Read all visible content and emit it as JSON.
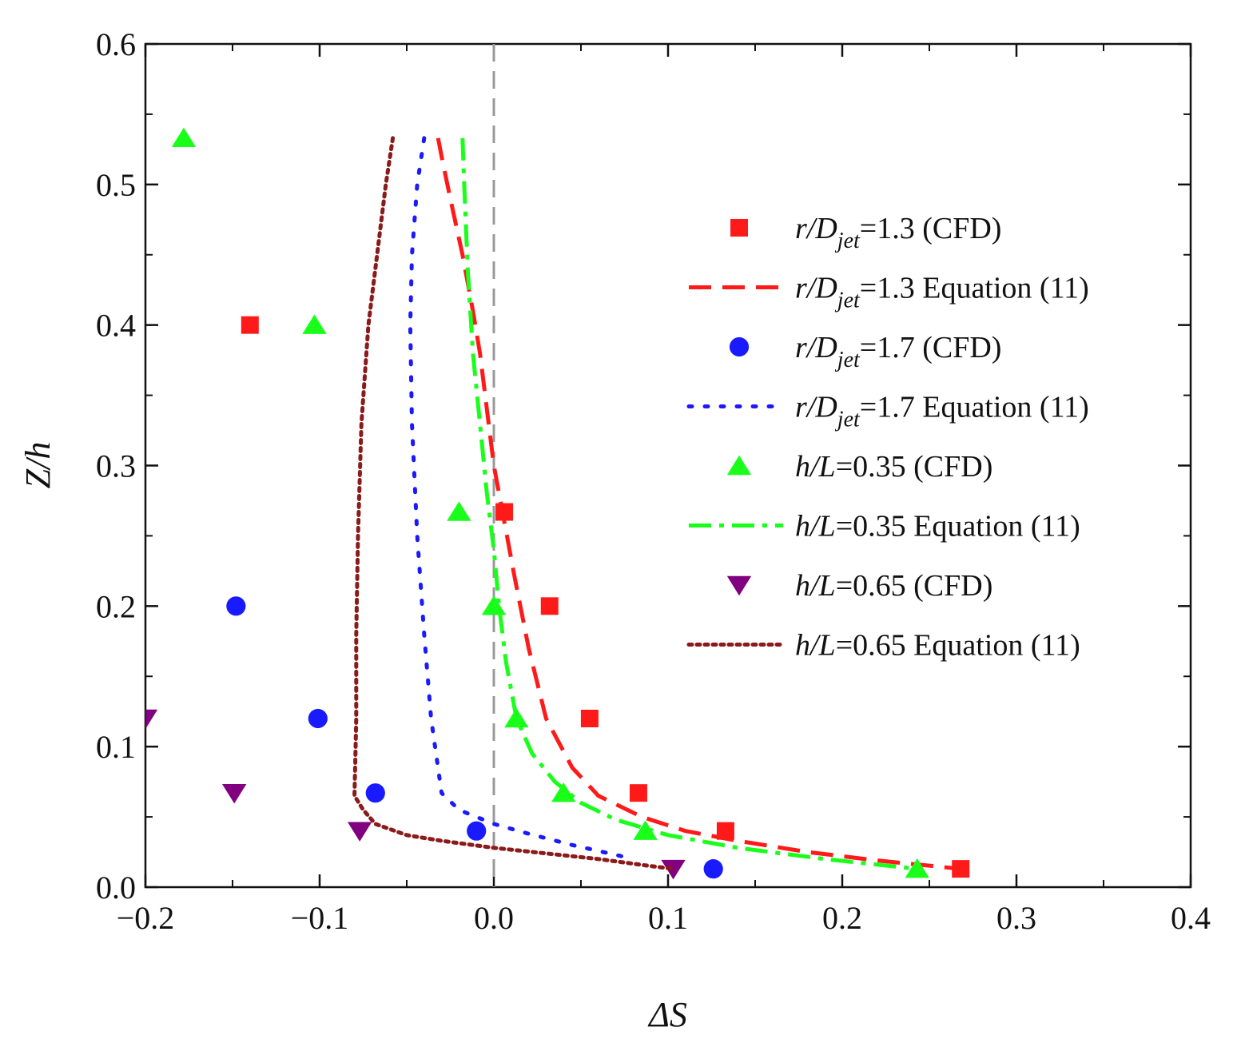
{
  "chart_data": {
    "type": "scatter",
    "title": "",
    "xlabel": "ΔS",
    "ylabel": "Z/h",
    "xlim": [
      -0.2,
      0.4
    ],
    "ylim": [
      0.0,
      0.6
    ],
    "xticks": [
      -0.2,
      -0.1,
      0.0,
      0.1,
      0.2,
      0.3,
      0.4
    ],
    "xtick_labels": [
      "−0.2",
      "−0.1",
      "0.0",
      "0.1",
      "0.2",
      "0.3",
      "0.4"
    ],
    "yticks": [
      0.0,
      0.1,
      0.2,
      0.3,
      0.4,
      0.5,
      0.6
    ],
    "ytick_labels": [
      "0.0",
      "0.1",
      "0.2",
      "0.3",
      "0.4",
      "0.5",
      "0.6"
    ],
    "grid": false,
    "legend_position": "right",
    "reference_line": {
      "x": 0.0,
      "style": "dashed",
      "color": "#999999"
    },
    "series": [
      {
        "name": "r/Djet=1.3 (CFD)",
        "label": {
          "pre": "r/D",
          "sub": "jet",
          "post": "=1.3 (CFD)"
        },
        "kind": "marker",
        "marker": "square",
        "color": "#ff1a1a",
        "x": [
          -0.14,
          0.006,
          0.032,
          0.055,
          0.083,
          0.133,
          0.268
        ],
        "y": [
          0.4,
          0.267,
          0.2,
          0.12,
          0.067,
          0.04,
          0.013
        ]
      },
      {
        "name": "r/Djet=1.3 Equation (11)",
        "label": {
          "pre": "r/D",
          "sub": "jet",
          "post": "=1.3 Equation (11)"
        },
        "kind": "line",
        "dash": "28 14",
        "color": "#ff1a1a",
        "x": [
          -0.032,
          -0.03,
          -0.025,
          -0.018,
          -0.012,
          -0.008,
          -0.004,
          0.0,
          0.006,
          0.012,
          0.02,
          0.03,
          0.045,
          0.06,
          0.085,
          0.11,
          0.14,
          0.18,
          0.22,
          0.268
        ],
        "y": [
          0.533,
          0.52,
          0.49,
          0.45,
          0.41,
          0.38,
          0.34,
          0.3,
          0.26,
          0.22,
          0.17,
          0.12,
          0.085,
          0.065,
          0.05,
          0.04,
          0.033,
          0.025,
          0.019,
          0.013
        ]
      },
      {
        "name": "r/Djet=1.7 (CFD)",
        "label": {
          "pre": "r/D",
          "sub": "jet",
          "post": "=1.7 (CFD)"
        },
        "kind": "marker",
        "marker": "circle",
        "color": "#1a1aff",
        "x": [
          -0.148,
          -0.101,
          -0.068,
          -0.01,
          0.126
        ],
        "y": [
          0.2,
          0.12,
          0.067,
          0.04,
          0.013
        ]
      },
      {
        "name": "r/Djet=1.7 Equation (11)",
        "label": {
          "pre": "r/D",
          "sub": "jet",
          "post": "=1.7 Equation (11)"
        },
        "kind": "line",
        "dash": "4 16",
        "color": "#1a1aff",
        "x": [
          -0.04,
          -0.044,
          -0.047,
          -0.048,
          -0.047,
          -0.044,
          -0.04,
          -0.036,
          -0.03,
          -0.02,
          0.0,
          0.02,
          0.045,
          0.07,
          0.08
        ],
        "y": [
          0.533,
          0.5,
          0.45,
          0.4,
          0.33,
          0.25,
          0.18,
          0.12,
          0.067,
          0.055,
          0.045,
          0.038,
          0.03,
          0.023,
          0.02
        ]
      },
      {
        "name": "h/L=0.35 (CFD)",
        "label": {
          "pre": "h/L",
          "sub": "",
          "post": "=0.35 (CFD)"
        },
        "kind": "marker",
        "marker": "triangle-up",
        "color": "#1aff1a",
        "x": [
          -0.178,
          -0.103,
          -0.02,
          0.0,
          0.013,
          0.04,
          0.087,
          0.243
        ],
        "y": [
          0.533,
          0.4,
          0.267,
          0.2,
          0.12,
          0.067,
          0.04,
          0.013
        ]
      },
      {
        "name": "h/L=0.35 Equation (11)",
        "label": {
          "pre": "h/L",
          "sub": "",
          "post": "=0.35 Equation (11)"
        },
        "kind": "line",
        "dash": "28 10 6 10",
        "color": "#1aff1a",
        "x": [
          -0.018,
          -0.017,
          -0.015,
          -0.012,
          -0.008,
          -0.004,
          0.0,
          0.003,
          0.007,
          0.013,
          0.022,
          0.035,
          0.05,
          0.07,
          0.1,
          0.14,
          0.19,
          0.243
        ],
        "y": [
          0.533,
          0.5,
          0.44,
          0.38,
          0.33,
          0.28,
          0.24,
          0.2,
          0.16,
          0.12,
          0.095,
          0.075,
          0.06,
          0.048,
          0.037,
          0.028,
          0.02,
          0.013
        ]
      },
      {
        "name": "h/L=0.65 (CFD)",
        "label": {
          "pre": "h/L",
          "sub": "",
          "post": "=0.65 (CFD)"
        },
        "kind": "marker",
        "marker": "triangle-down",
        "color": "#800080",
        "x": [
          -0.2,
          -0.149,
          -0.077,
          0.103
        ],
        "y": [
          0.12,
          0.067,
          0.04,
          0.013
        ]
      },
      {
        "name": "h/L=0.65 Equation (11)",
        "label": {
          "pre": "h/L",
          "sub": "",
          "post": "=0.65 Equation (11)"
        },
        "kind": "line",
        "dash": "4 6",
        "color": "#8b1a1a",
        "x": [
          -0.058,
          -0.062,
          -0.067,
          -0.072,
          -0.076,
          -0.078,
          -0.079,
          -0.079,
          -0.08,
          -0.075,
          -0.068,
          -0.05,
          -0.03,
          0.0,
          0.03,
          0.06,
          0.09,
          0.103
        ],
        "y": [
          0.533,
          0.5,
          0.45,
          0.4,
          0.33,
          0.25,
          0.18,
          0.12,
          0.065,
          0.055,
          0.045,
          0.037,
          0.033,
          0.028,
          0.024,
          0.02,
          0.015,
          0.013
        ]
      }
    ]
  }
}
